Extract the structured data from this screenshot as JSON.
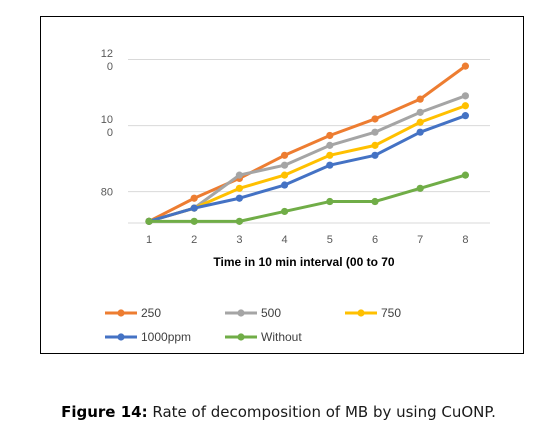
{
  "chart_data": {
    "type": "line",
    "xlabel": "Time in 10  min interval (00  to 70",
    "x": [
      1,
      2,
      3,
      4,
      5,
      6,
      7,
      8
    ],
    "yticks": [
      {
        "value": 120,
        "label_lines": [
          "12",
          "0"
        ]
      },
      {
        "value": 100,
        "label_lines": [
          "10",
          "0"
        ]
      },
      {
        "value": 80,
        "label_lines": [
          "80"
        ]
      }
    ],
    "ylim": [
      70.5,
      125
    ],
    "grid": "horizontal",
    "legend_position": "bottom",
    "series": [
      {
        "name": "250",
        "color": "#ED7D31",
        "values": [
          71,
          78,
          84,
          91,
          97,
          102,
          108,
          118
        ]
      },
      {
        "name": "500",
        "color": "#A5A5A5",
        "values": [
          71,
          75,
          85,
          88,
          94,
          98,
          104,
          109
        ]
      },
      {
        "name": "750",
        "color": "#FFC000",
        "values": [
          71,
          75,
          81,
          85,
          91,
          94,
          101,
          106
        ]
      },
      {
        "name": "1000ppm",
        "color": "#4472C4",
        "values": [
          71,
          75,
          78,
          82,
          88,
          91,
          98,
          103
        ]
      },
      {
        "name": "Without",
        "color": "#70AD47",
        "values": [
          71,
          71,
          71,
          74,
          77,
          77,
          81,
          85
        ]
      }
    ]
  },
  "caption": {
    "label": "Figure 14:",
    "text": " Rate of decomposition of MB by using CuONP."
  }
}
